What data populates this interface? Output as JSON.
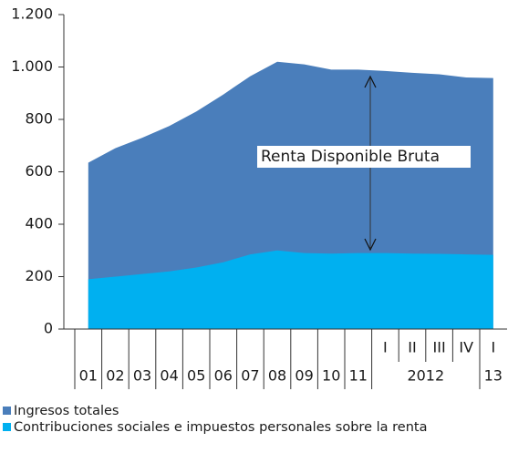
{
  "chart_data": {
    "type": "area",
    "categories": [
      "01",
      "02",
      "03",
      "04",
      "05",
      "06",
      "07",
      "08",
      "09",
      "10",
      "11",
      "I",
      "II",
      "III",
      "IV",
      "I"
    ],
    "category_groups": [
      null,
      null,
      null,
      null,
      null,
      null,
      null,
      null,
      null,
      null,
      null,
      "2012",
      "2012",
      "2012",
      "2012",
      "13"
    ],
    "series": [
      {
        "name": "Ingresos totales",
        "color": "#4a7ebb",
        "values": [
          635,
          690,
          730,
          775,
          830,
          895,
          965,
          1020,
          1010,
          990,
          990,
          985,
          978,
          972,
          960,
          958
        ]
      },
      {
        "name": "Contribuciones sociales e impuestos personales sobre la renta",
        "color": "#00b0f0",
        "values": [
          190,
          200,
          210,
          220,
          235,
          255,
          285,
          300,
          290,
          288,
          290,
          290,
          288,
          287,
          285,
          283
        ]
      }
    ],
    "ylim": [
      0,
      1200
    ],
    "yticks": [
      0,
      200,
      400,
      600,
      800,
      {
        "value": 1000,
        "label": "1.000"
      },
      {
        "value": 1200,
        "label": "1.200"
      }
    ],
    "annotation": "Renta Disponible Bruta"
  }
}
